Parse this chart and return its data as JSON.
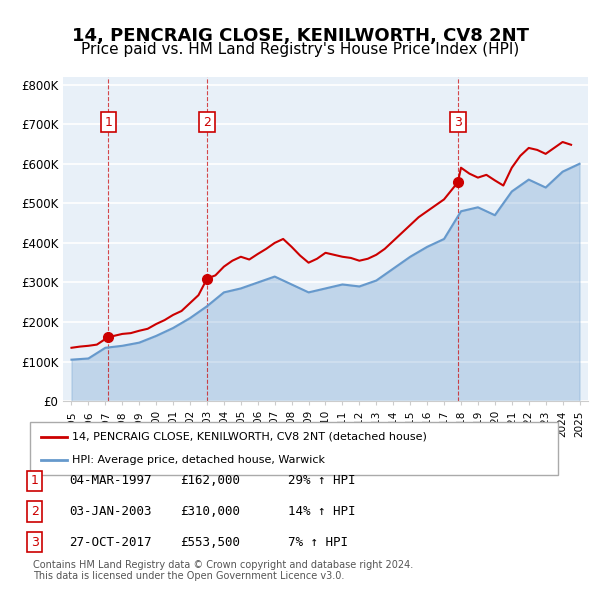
{
  "title": "14, PENCRAIG CLOSE, KENILWORTH, CV8 2NT",
  "subtitle": "Price paid vs. HM Land Registry's House Price Index (HPI)",
  "title_fontsize": 13,
  "subtitle_fontsize": 11,
  "ylabel_ticks": [
    "£0",
    "£100K",
    "£200K",
    "£300K",
    "£400K",
    "£500K",
    "£600K",
    "£700K",
    "£800K"
  ],
  "ytick_values": [
    0,
    100000,
    200000,
    300000,
    400000,
    500000,
    600000,
    700000,
    800000
  ],
  "ylim": [
    0,
    820000
  ],
  "xlim_start": 1994.5,
  "xlim_end": 2025.5,
  "sale_dates": [
    1997.17,
    2003.01,
    2017.82
  ],
  "sale_prices": [
    162000,
    310000,
    553500
  ],
  "sale_labels": [
    "1",
    "2",
    "3"
  ],
  "red_color": "#cc0000",
  "blue_color": "#6699cc",
  "background_color": "#e8f0f8",
  "grid_color": "#ffffff",
  "legend_label_red": "14, PENCRAIG CLOSE, KENILWORTH, CV8 2NT (detached house)",
  "legend_label_blue": "HPI: Average price, detached house, Warwick",
  "table_rows": [
    {
      "num": "1",
      "date": "04-MAR-1997",
      "price": "£162,000",
      "hpi": "29% ↑ HPI"
    },
    {
      "num": "2",
      "date": "03-JAN-2003",
      "price": "£310,000",
      "hpi": "14% ↑ HPI"
    },
    {
      "num": "3",
      "date": "27-OCT-2017",
      "price": "£553,500",
      "hpi": "7% ↑ HPI"
    }
  ],
  "footer": "Contains HM Land Registry data © Crown copyright and database right 2024.\nThis data is licensed under the Open Government Licence v3.0.",
  "years": [
    1995,
    1996,
    1997,
    1998,
    1999,
    2000,
    2001,
    2002,
    2003,
    2004,
    2005,
    2006,
    2007,
    2008,
    2009,
    2010,
    2011,
    2012,
    2013,
    2014,
    2015,
    2016,
    2017,
    2018,
    2019,
    2020,
    2021,
    2022,
    2023,
    2024,
    2025
  ],
  "hpi_values": [
    105000,
    108000,
    135000,
    140000,
    148000,
    165000,
    185000,
    210000,
    240000,
    275000,
    285000,
    300000,
    315000,
    295000,
    275000,
    285000,
    295000,
    290000,
    305000,
    335000,
    365000,
    390000,
    410000,
    480000,
    490000,
    470000,
    530000,
    560000,
    540000,
    580000,
    600000
  ],
  "price_paid_x": [
    1995.0,
    1995.5,
    1996.0,
    1996.5,
    1997.17,
    1997.5,
    1998.0,
    1998.5,
    1999.0,
    1999.5,
    2000.0,
    2000.5,
    2001.0,
    2001.5,
    2002.0,
    2002.5,
    2003.01,
    2003.5,
    2004.0,
    2004.5,
    2005.0,
    2005.5,
    2006.0,
    2006.5,
    2007.0,
    2007.5,
    2008.0,
    2008.5,
    2009.0,
    2009.5,
    2010.0,
    2010.5,
    2011.0,
    2011.5,
    2012.0,
    2012.5,
    2013.0,
    2013.5,
    2014.0,
    2014.5,
    2015.0,
    2015.5,
    2016.0,
    2016.5,
    2017.0,
    2017.82,
    2018.0,
    2018.5,
    2019.0,
    2019.5,
    2020.0,
    2020.5,
    2021.0,
    2021.5,
    2022.0,
    2022.5,
    2023.0,
    2023.5,
    2024.0,
    2024.5
  ],
  "price_paid_y": [
    135000,
    138000,
    140000,
    143000,
    162000,
    165000,
    170000,
    172000,
    178000,
    183000,
    195000,
    205000,
    218000,
    228000,
    248000,
    268000,
    310000,
    318000,
    340000,
    355000,
    365000,
    358000,
    372000,
    385000,
    400000,
    410000,
    390000,
    368000,
    350000,
    360000,
    375000,
    370000,
    365000,
    362000,
    355000,
    360000,
    370000,
    385000,
    405000,
    425000,
    445000,
    465000,
    480000,
    495000,
    510000,
    553500,
    590000,
    575000,
    565000,
    572000,
    558000,
    545000,
    590000,
    620000,
    640000,
    635000,
    625000,
    640000,
    655000,
    648000
  ]
}
